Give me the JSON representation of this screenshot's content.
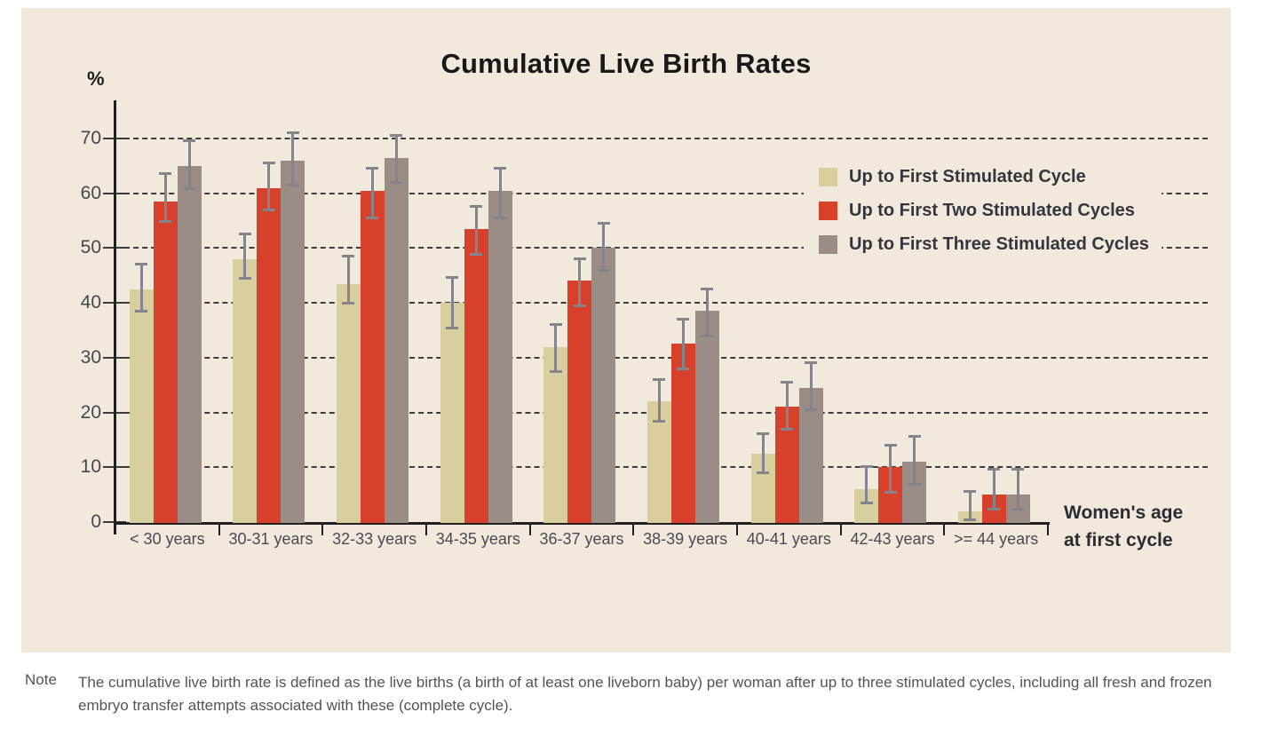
{
  "title": "Cumulative Live Birth Rates",
  "y_axis_unit": "%",
  "x_axis_title": {
    "line1": "Women's age",
    "line2": "at first cycle"
  },
  "note": {
    "label": "Note",
    "text": "The cumulative live birth rate is defined as the live births (a birth of at least one liveborn baby) per woman after up to three stimulated cycles, including all fresh and frozen embryo transfer attempts associated with these (complete cycle)."
  },
  "colors": {
    "panel_background": "#f2e9dd",
    "axis": "#221f20",
    "gridline": "#3d3b3b",
    "error_bar": "#84848c",
    "tick_label": "#46464d"
  },
  "chart_data": {
    "type": "bar",
    "title": "Cumulative Live Birth Rates",
    "ylabel": "%",
    "xlabel": "Women's age at first cycle",
    "ylim": [
      0,
      70
    ],
    "yticks": [
      0,
      10,
      20,
      30,
      40,
      50,
      60,
      70
    ],
    "grid": "horizontal-dashed",
    "legend_position": "upper-right",
    "error_bars": true,
    "categories": [
      "< 30 years",
      "30-31 years",
      "32-33 years",
      "34-35 years",
      "36-37 years",
      "38-39 years",
      "40-41 years",
      "42-43 years",
      ">= 44 years"
    ],
    "series": [
      {
        "name": "Up to First Stimulated Cycle",
        "key": "first-cycle",
        "color": "#d9ce9d",
        "values": [
          42.5,
          48.0,
          43.5,
          40.0,
          32.0,
          22.0,
          12.5,
          6.0,
          2.0
        ],
        "error_low": [
          38.5,
          44.5,
          40.0,
          35.5,
          27.5,
          18.5,
          9.0,
          3.5,
          0.5
        ],
        "error_high": [
          47.0,
          52.5,
          48.5,
          44.5,
          36.0,
          26.0,
          16.0,
          10.0,
          5.5
        ]
      },
      {
        "name": "Up to First Two Stimulated Cycles",
        "key": "two-cycles",
        "color": "#d7402b",
        "values": [
          58.5,
          61.0,
          60.5,
          53.5,
          44.0,
          32.5,
          21.0,
          10.0,
          5.0
        ],
        "error_low": [
          55.0,
          57.0,
          55.5,
          49.0,
          39.5,
          28.0,
          17.0,
          5.5,
          2.5
        ],
        "error_high": [
          63.5,
          65.5,
          64.5,
          57.5,
          48.0,
          37.0,
          25.5,
          14.0,
          9.5
        ]
      },
      {
        "name": "Up to First Three Stimulated Cycles",
        "key": "three-cycles",
        "color": "#9c8c86",
        "values": [
          65.0,
          66.0,
          66.5,
          60.5,
          50.0,
          38.5,
          24.5,
          11.0,
          5.0
        ],
        "error_low": [
          61.0,
          61.5,
          62.0,
          55.5,
          46.0,
          34.0,
          20.5,
          7.0,
          2.5
        ],
        "error_high": [
          69.5,
          71.0,
          70.5,
          64.5,
          54.5,
          42.5,
          29.0,
          15.5,
          9.5
        ]
      }
    ]
  }
}
